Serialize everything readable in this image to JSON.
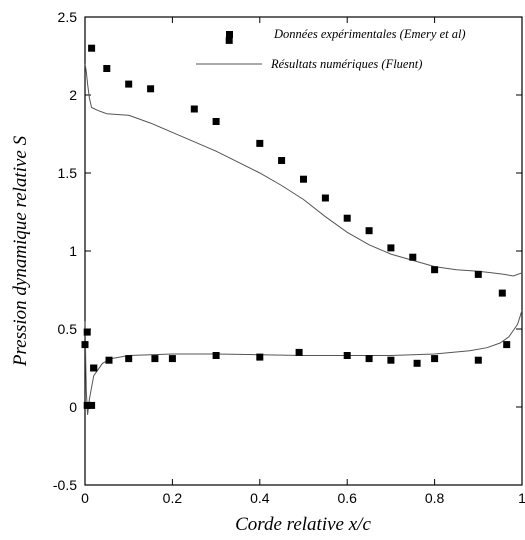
{
  "chart_data": {
    "type": "scatter",
    "xlabel": "Corde relative x/c",
    "ylabel": "Pression dynamique relative  S",
    "xlim": [
      0,
      1
    ],
    "ylim": [
      -0.5,
      2.5
    ],
    "x_ticks": [
      "0",
      "0.2",
      "0.4",
      "0.6",
      "0.8",
      "1"
    ],
    "y_ticks": [
      "-0.5",
      "0",
      "0.5",
      "1",
      "1.5",
      "2",
      "2.5"
    ],
    "x_tick_values": [
      0,
      0.2,
      0.4,
      0.6,
      0.8,
      1
    ],
    "y_tick_values": [
      -0.5,
      0,
      0.5,
      1,
      1.5,
      2,
      2.5
    ],
    "grid": false,
    "legend_position": "top-right",
    "series": [
      {
        "name": "Données expérimentales  (Emery et al)",
        "style": "markers",
        "marker": "square",
        "color": "#000000",
        "x": [
          0.0,
          0.005,
          0.015,
          0.02,
          0.05,
          0.1,
          0.15,
          0.25,
          0.3,
          0.33,
          0.4,
          0.45,
          0.5,
          0.55,
          0.6,
          0.65,
          0.7,
          0.75,
          0.8,
          0.9,
          0.955,
          0.005,
          0.015,
          0.02,
          0.055,
          0.1,
          0.16,
          0.2,
          0.3,
          0.4,
          0.49,
          0.6,
          0.65,
          0.7,
          0.76,
          0.8,
          0.9,
          0.965
        ],
        "y": [
          0.4,
          0.48,
          2.3,
          0.25,
          2.17,
          2.07,
          2.04,
          1.91,
          1.83,
          2.35,
          1.69,
          1.58,
          1.46,
          1.34,
          1.21,
          1.13,
          1.02,
          0.96,
          0.88,
          0.85,
          0.73,
          0.01,
          0.01,
          0.25,
          0.3,
          0.31,
          0.31,
          0.31,
          0.33,
          0.32,
          0.35,
          0.33,
          0.31,
          0.3,
          0.28,
          0.31,
          0.3,
          0.4
        ]
      },
      {
        "name": "Résultats numériques  (Fluent)",
        "style": "line",
        "color": "#555555",
        "segments": [
          {
            "x": [
              0.0,
              0.003,
              0.006,
              0.01,
              0.015,
              0.03,
              0.05,
              0.1,
              0.15,
              0.2,
              0.25,
              0.3,
              0.35,
              0.4,
              0.45,
              0.5,
              0.55,
              0.6,
              0.65,
              0.7,
              0.75,
              0.8,
              0.85,
              0.9,
              0.93,
              0.96,
              0.98,
              1.0
            ],
            "y": [
              2.2,
              2.15,
              2.07,
              1.98,
              1.92,
              1.9,
              1.88,
              1.87,
              1.82,
              1.76,
              1.7,
              1.64,
              1.57,
              1.5,
              1.42,
              1.33,
              1.22,
              1.12,
              1.04,
              0.98,
              0.94,
              0.9,
              0.88,
              0.87,
              0.86,
              0.85,
              0.84,
              0.86
            ]
          },
          {
            "x": [
              0.0,
              0.003,
              0.006,
              0.01,
              0.02,
              0.04,
              0.06,
              0.1,
              0.2,
              0.3,
              0.4,
              0.5,
              0.6,
              0.7,
              0.8,
              0.88,
              0.92,
              0.95,
              0.97,
              0.99,
              1.0
            ],
            "y": [
              0.55,
              0.1,
              -0.05,
              0.05,
              0.2,
              0.28,
              0.31,
              0.33,
              0.34,
              0.34,
              0.335,
              0.33,
              0.33,
              0.33,
              0.34,
              0.36,
              0.38,
              0.41,
              0.45,
              0.53,
              0.62
            ]
          }
        ]
      }
    ]
  }
}
